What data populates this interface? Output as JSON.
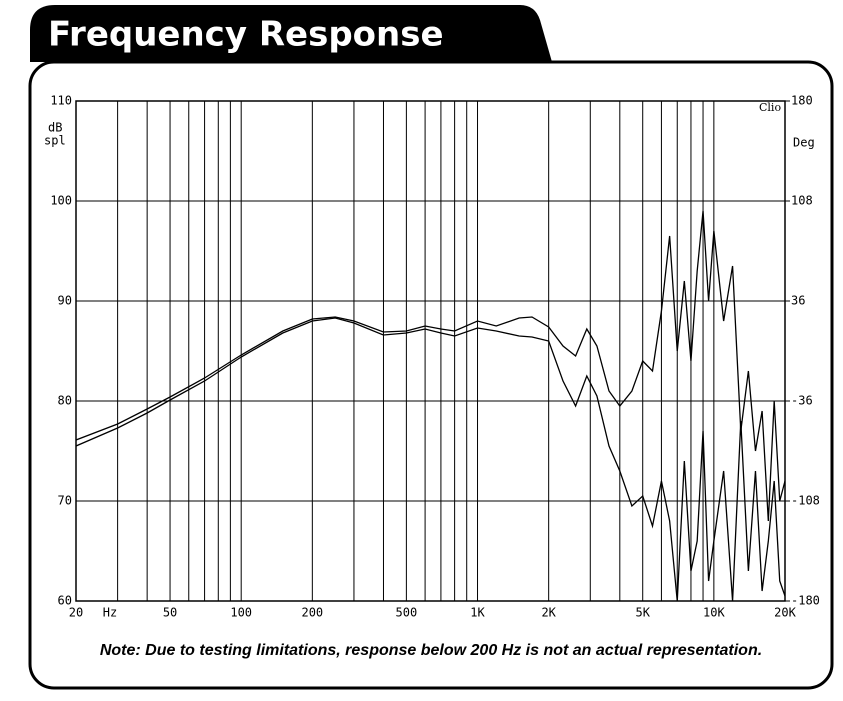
{
  "chart_data": {
    "type": "line",
    "title": "Frequency Response",
    "note": "Note:  Due to testing limitations, response below 200 Hz is not an actual representation.",
    "annotation": "Clio",
    "ylabel": [
      "dB",
      "spl"
    ],
    "y2label": "Deg",
    "xlabel": "Hz",
    "xscale": "log",
    "xlim": [
      20,
      20000
    ],
    "ylim": [
      60,
      110
    ],
    "y2lim": [
      -180,
      180
    ],
    "xticks": [
      20,
      50,
      100,
      200,
      500,
      {
        "value": 1000,
        "label": "1K"
      },
      {
        "value": 2000,
        "label": "2K"
      },
      {
        "value": 5000,
        "label": "5K"
      },
      {
        "value": 10000,
        "label": "10K"
      },
      {
        "value": 20000,
        "label": "20K"
      }
    ],
    "xgrid": [
      20,
      30,
      40,
      50,
      60,
      70,
      80,
      90,
      100,
      200,
      300,
      400,
      500,
      600,
      700,
      800,
      900,
      1000,
      2000,
      3000,
      4000,
      5000,
      6000,
      7000,
      8000,
      9000,
      10000,
      20000
    ],
    "yticks": [
      60,
      70,
      80,
      90,
      100,
      110
    ],
    "y2ticks": [
      -180,
      -108,
      -36,
      36,
      108,
      180
    ],
    "grid": true,
    "x": [
      20,
      30,
      40,
      50,
      70,
      100,
      150,
      200,
      250,
      300,
      400,
      500,
      600,
      700,
      800,
      1000,
      1200,
      1500,
      1700,
      2000,
      2300,
      2600,
      2900,
      3200,
      3600,
      4000,
      4500,
      5000,
      5500,
      6000,
      6500,
      7000,
      7500,
      8000,
      8500,
      9000,
      9500,
      10000,
      11000,
      12000,
      13000,
      14000,
      15000,
      16000,
      17000,
      18000,
      19000,
      20000
    ],
    "series": [
      {
        "color": "#000000",
        "values": [
          76.1,
          77.7,
          79.2,
          80.4,
          82.3,
          84.6,
          87.0,
          88.2,
          88.4,
          88.0,
          86.9,
          87.0,
          87.5,
          87.2,
          87.0,
          88.0,
          87.5,
          88.3,
          88.4,
          87.4,
          85.5,
          84.5,
          87.2,
          85.5,
          81.0,
          79.5,
          81.0,
          84.0,
          83.0,
          89.0,
          96.5,
          85.0,
          92.0,
          84.0,
          93.0,
          99.0,
          90.0,
          97.0,
          88.0,
          93.5,
          77.0,
          83.0,
          75.0,
          79.0,
          68.0,
          80.0,
          70.0,
          72.0
        ]
      },
      {
        "color": "#000000",
        "values": [
          75.5,
          77.3,
          78.8,
          80.1,
          82.0,
          84.4,
          86.8,
          88.0,
          88.3,
          87.8,
          86.6,
          86.8,
          87.2,
          86.8,
          86.5,
          87.3,
          87.0,
          86.5,
          86.4,
          86.0,
          82.0,
          79.5,
          82.5,
          80.5,
          75.5,
          73.0,
          69.5,
          70.5,
          67.5,
          72.0,
          68.0,
          60.0,
          74.0,
          63.0,
          66.0,
          77.0,
          62.0,
          66.0,
          73.0,
          60.0,
          78.0,
          63.0,
          73.0,
          61.0,
          66.0,
          72.0,
          62.0,
          60.5
        ]
      }
    ]
  }
}
